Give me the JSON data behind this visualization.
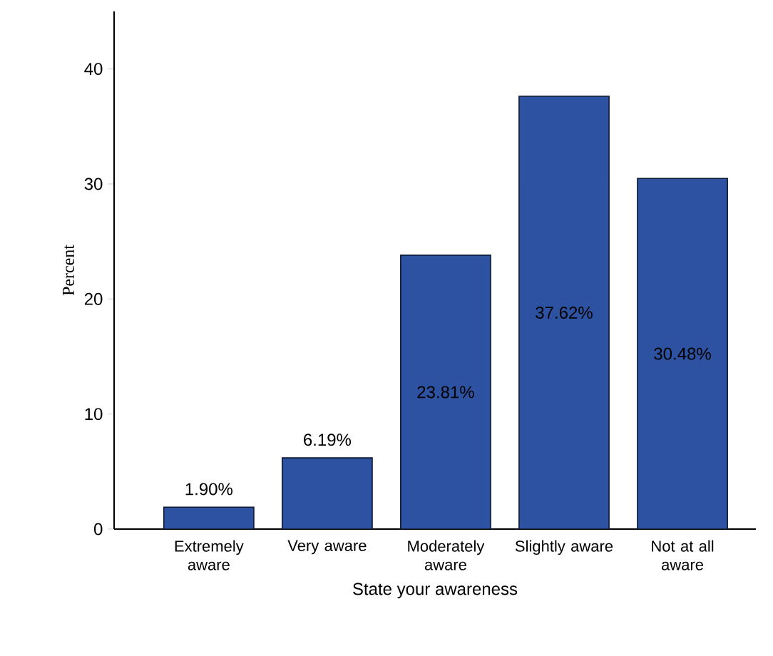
{
  "chart_data": {
    "type": "bar",
    "xlabel": "State your awareness",
    "ylabel": "Percent",
    "categories": [
      "Extremely aware",
      "Very aware",
      "Moderately aware",
      "Slightly aware",
      "Not at all aware"
    ],
    "values": [
      1.9,
      6.19,
      23.81,
      37.62,
      30.48
    ],
    "value_labels": [
      "1.90%",
      "6.19%",
      "23.81%",
      "37.62%",
      "30.48%"
    ],
    "color": "#2e52a2",
    "ylim": [
      0,
      45
    ],
    "yticks": [
      0,
      10,
      20,
      30,
      40
    ],
    "grid": false
  }
}
